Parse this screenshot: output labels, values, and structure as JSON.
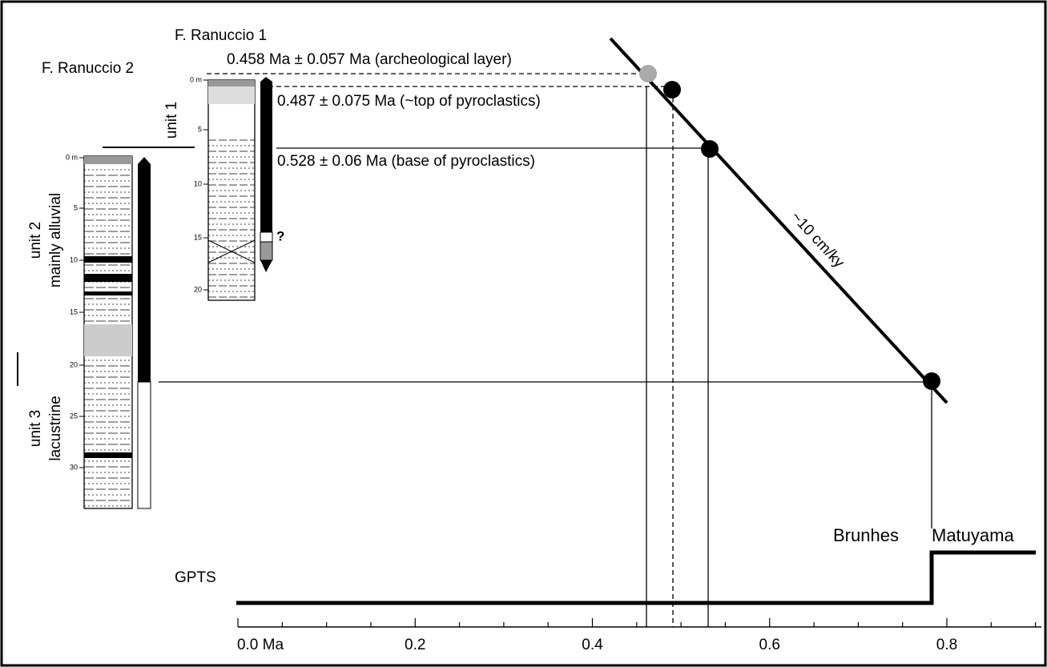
{
  "ranuccio1": {
    "title": "F. Ranuccio 1",
    "unit": "unit 1",
    "depths": [
      "0 m",
      "5",
      "10",
      "15",
      "20"
    ],
    "query": "?"
  },
  "ranuccio2": {
    "title": "F. Ranuccio 2",
    "unit2": "unit 2",
    "unit2_desc": "mainly alluvial",
    "unit3": "unit 3",
    "unit3_desc": "lacustrine",
    "depths": [
      "0 m",
      "5",
      "10",
      "15",
      "20",
      "25",
      "30"
    ]
  },
  "ages": [
    "0.458 Ma ± 0.057 Ma (archeological layer)",
    "0.487 ± 0.075 Ma (~top of pyroclastics)",
    "0.528 ± 0.06 Ma (base of pyroclastics)"
  ],
  "rate": "~10 cm/ky",
  "gpts": {
    "label": "GPTS",
    "brunhes": "Brunhes",
    "matuyama": "Matuyama"
  },
  "axis": {
    "ticks": [
      "0.0 Ma",
      "0.2",
      "0.4",
      "0.6",
      "0.8"
    ]
  }
}
